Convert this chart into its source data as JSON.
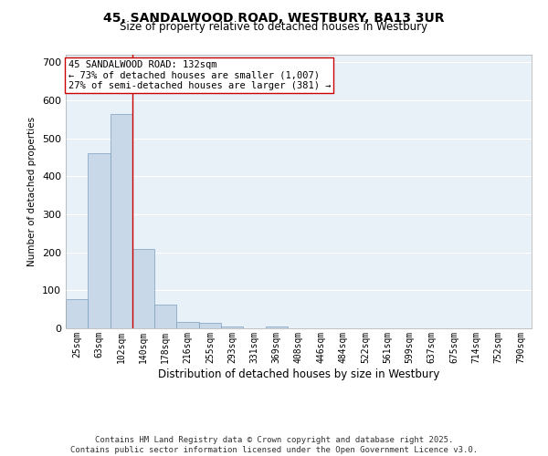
{
  "title_line1": "45, SANDALWOOD ROAD, WESTBURY, BA13 3UR",
  "title_line2": "Size of property relative to detached houses in Westbury",
  "xlabel": "Distribution of detached houses by size in Westbury",
  "ylabel": "Number of detached properties",
  "categories": [
    "25sqm",
    "63sqm",
    "102sqm",
    "140sqm",
    "178sqm",
    "216sqm",
    "255sqm",
    "293sqm",
    "331sqm",
    "369sqm",
    "408sqm",
    "446sqm",
    "484sqm",
    "522sqm",
    "561sqm",
    "599sqm",
    "637sqm",
    "675sqm",
    "714sqm",
    "752sqm",
    "790sqm"
  ],
  "values": [
    78,
    460,
    565,
    208,
    62,
    18,
    15,
    5,
    0,
    5,
    0,
    0,
    0,
    0,
    0,
    0,
    0,
    0,
    0,
    0,
    0
  ],
  "bar_color": "#c8d8e8",
  "bar_edge_color": "#7aa0c0",
  "vline_x_index": 2,
  "vline_color": "#cc0000",
  "annotation_text_line1": "45 SANDALWOOD ROAD: 132sqm",
  "annotation_text_line2": "← 73% of detached houses are smaller (1,007)",
  "annotation_text_line3": "27% of semi-detached houses are larger (381) →",
  "annotation_fontsize": 7.5,
  "ylim": [
    0,
    720
  ],
  "yticks": [
    0,
    100,
    200,
    300,
    400,
    500,
    600,
    700
  ],
  "bg_color": "#e8f0f8",
  "grid_color": "#ffffff",
  "footer_line1": "Contains HM Land Registry data © Crown copyright and database right 2025.",
  "footer_line2": "Contains public sector information licensed under the Open Government Licence v3.0.",
  "footer_fontsize": 6.5,
  "title1_fontsize": 10,
  "title2_fontsize": 8.5,
  "xlabel_fontsize": 8.5,
  "ylabel_fontsize": 7.5,
  "xtick_fontsize": 7,
  "ytick_fontsize": 8
}
